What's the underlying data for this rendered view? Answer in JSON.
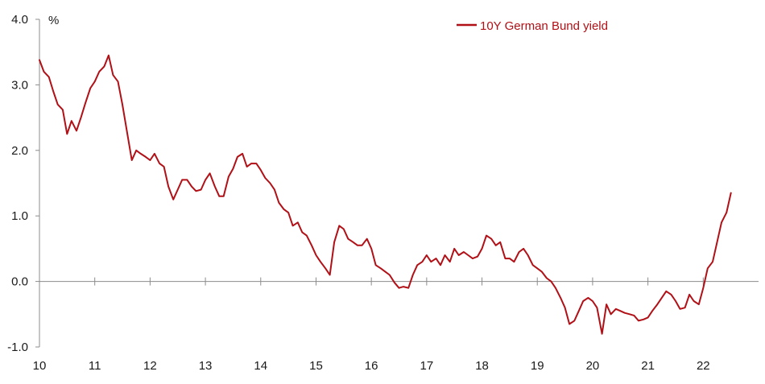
{
  "chart_data": {
    "type": "line",
    "title": "",
    "xlabel": "",
    "ylabel": "%",
    "ylim": [
      -1.0,
      4.0
    ],
    "yticks": [
      -1.0,
      0.0,
      1.0,
      2.0,
      3.0,
      4.0
    ],
    "ytick_labels": [
      "-1.0",
      "0.0",
      "1.0",
      "2.0",
      "3.0",
      "4.0"
    ],
    "xlim": [
      2010.0,
      2023.0
    ],
    "xticks": [
      2010,
      2011,
      2012,
      2013,
      2014,
      2015,
      2016,
      2017,
      2018,
      2019,
      2020,
      2021,
      2022
    ],
    "xtick_labels": [
      "10",
      "11",
      "12",
      "13",
      "14",
      "15",
      "16",
      "17",
      "18",
      "19",
      "20",
      "21",
      "22"
    ],
    "grid": false,
    "legend": "top-right",
    "series": [
      {
        "name": "10Y German Bund yield",
        "color": "#b01016",
        "x": [
          2010.0,
          2010.08,
          2010.17,
          2010.25,
          2010.33,
          2010.42,
          2010.5,
          2010.58,
          2010.67,
          2010.75,
          2010.83,
          2010.92,
          2011.0,
          2011.08,
          2011.17,
          2011.25,
          2011.33,
          2011.42,
          2011.5,
          2011.58,
          2011.67,
          2011.75,
          2011.83,
          2011.92,
          2012.0,
          2012.08,
          2012.17,
          2012.25,
          2012.33,
          2012.42,
          2012.5,
          2012.58,
          2012.67,
          2012.75,
          2012.83,
          2012.92,
          2013.0,
          2013.08,
          2013.17,
          2013.25,
          2013.33,
          2013.42,
          2013.5,
          2013.58,
          2013.67,
          2013.75,
          2013.83,
          2013.92,
          2014.0,
          2014.08,
          2014.17,
          2014.25,
          2014.33,
          2014.42,
          2014.5,
          2014.58,
          2014.67,
          2014.75,
          2014.83,
          2014.92,
          2015.0,
          2015.08,
          2015.17,
          2015.25,
          2015.33,
          2015.42,
          2015.5,
          2015.58,
          2015.67,
          2015.75,
          2015.83,
          2015.92,
          2016.0,
          2016.08,
          2016.17,
          2016.25,
          2016.33,
          2016.42,
          2016.5,
          2016.58,
          2016.67,
          2016.75,
          2016.83,
          2016.92,
          2017.0,
          2017.08,
          2017.17,
          2017.25,
          2017.33,
          2017.42,
          2017.5,
          2017.58,
          2017.67,
          2017.75,
          2017.83,
          2017.92,
          2018.0,
          2018.08,
          2018.17,
          2018.25,
          2018.33,
          2018.42,
          2018.5,
          2018.58,
          2018.67,
          2018.75,
          2018.83,
          2018.92,
          2019.0,
          2019.08,
          2019.17,
          2019.25,
          2019.33,
          2019.42,
          2019.5,
          2019.58,
          2019.67,
          2019.75,
          2019.83,
          2019.92,
          2020.0,
          2020.08,
          2020.17,
          2020.25,
          2020.33,
          2020.42,
          2020.5,
          2020.58,
          2020.67,
          2020.75,
          2020.83,
          2020.92,
          2021.0,
          2021.08,
          2021.17,
          2021.25,
          2021.33,
          2021.42,
          2021.5,
          2021.58,
          2021.67,
          2021.75,
          2021.83,
          2021.92,
          2022.0,
          2022.08,
          2022.17,
          2022.25,
          2022.33,
          2022.42,
          2022.5
        ],
        "values": [
          3.38,
          3.2,
          3.12,
          2.9,
          2.7,
          2.62,
          2.25,
          2.45,
          2.3,
          2.5,
          2.72,
          2.95,
          3.05,
          3.2,
          3.28,
          3.45,
          3.15,
          3.05,
          2.7,
          2.3,
          1.85,
          2.0,
          1.95,
          1.9,
          1.85,
          1.95,
          1.8,
          1.75,
          1.45,
          1.25,
          1.4,
          1.55,
          1.55,
          1.45,
          1.38,
          1.4,
          1.55,
          1.65,
          1.45,
          1.3,
          1.3,
          1.6,
          1.72,
          1.9,
          1.95,
          1.75,
          1.8,
          1.8,
          1.7,
          1.58,
          1.5,
          1.4,
          1.2,
          1.1,
          1.05,
          0.85,
          0.9,
          0.75,
          0.7,
          0.55,
          0.4,
          0.3,
          0.2,
          0.1,
          0.6,
          0.85,
          0.8,
          0.65,
          0.6,
          0.55,
          0.55,
          0.65,
          0.5,
          0.25,
          0.2,
          0.15,
          0.1,
          -0.02,
          -0.1,
          -0.08,
          -0.1,
          0.1,
          0.25,
          0.3,
          0.4,
          0.3,
          0.35,
          0.25,
          0.4,
          0.3,
          0.5,
          0.4,
          0.45,
          0.4,
          0.35,
          0.38,
          0.5,
          0.7,
          0.65,
          0.55,
          0.6,
          0.35,
          0.35,
          0.3,
          0.45,
          0.5,
          0.4,
          0.25,
          0.2,
          0.15,
          0.05,
          0.0,
          -0.1,
          -0.25,
          -0.4,
          -0.65,
          -0.6,
          -0.45,
          -0.3,
          -0.25,
          -0.3,
          -0.4,
          -0.8,
          -0.35,
          -0.5,
          -0.42,
          -0.45,
          -0.48,
          -0.5,
          -0.52,
          -0.6,
          -0.58,
          -0.55,
          -0.45,
          -0.35,
          -0.25,
          -0.15,
          -0.2,
          -0.3,
          -0.42,
          -0.4,
          -0.2,
          -0.3,
          -0.35,
          -0.1,
          0.2,
          0.3,
          0.6,
          0.9,
          1.05,
          1.35
        ]
      }
    ]
  }
}
